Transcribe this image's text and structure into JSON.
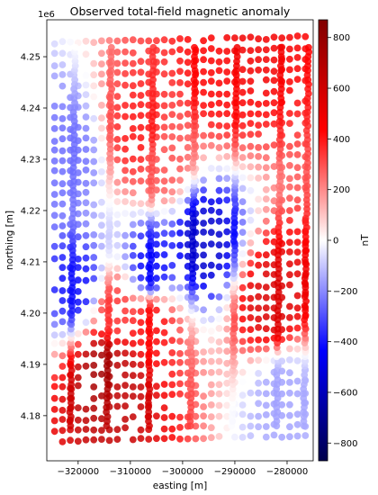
{
  "chart_data": {
    "type": "scatter",
    "title": "Observed total-field magnetic anomaly",
    "xlabel": "easting [m]",
    "ylabel": "northing [m]",
    "y_offset_label": "1e6",
    "xlim": [
      -326000,
      -275000
    ],
    "ylim": [
      4.1712,
      4.2572
    ],
    "x_ticks": [
      -320000,
      -310000,
      -300000,
      -290000,
      -280000
    ],
    "x_tick_labels": [
      "−320000",
      "−310000",
      "−300000",
      "−290000",
      "−280000"
    ],
    "y_ticks": [
      4.18,
      4.19,
      4.2,
      4.21,
      4.22,
      4.23,
      4.24,
      4.25
    ],
    "y_tick_labels": [
      "4.18",
      "4.19",
      "4.20",
      "4.21",
      "4.22",
      "4.23",
      "4.24",
      "4.25"
    ],
    "grid": false,
    "colormap": "seismic",
    "colormap_colors": [
      "#00004c",
      "#0000ff",
      "#ffffff",
      "#ff0000",
      "#800000"
    ],
    "colorbar": {
      "label": "nT",
      "range": [
        -870,
        870
      ],
      "ticks": [
        -800,
        -600,
        -400,
        -200,
        0,
        200,
        400,
        600,
        800
      ],
      "tick_labels": [
        "−800",
        "−600",
        "−400",
        "−200",
        "0",
        "200",
        "400",
        "600",
        "800"
      ]
    },
    "anomaly_samples": [
      {
        "easting": -315000,
        "northing": 4.189,
        "value": 750
      },
      {
        "easting": -312000,
        "northing": 4.187,
        "value": 650
      },
      {
        "easting": -306000,
        "northing": 4.198,
        "value": 430
      },
      {
        "easting": -313000,
        "northing": 4.2,
        "value": 350
      },
      {
        "easting": -283000,
        "northing": 4.202,
        "value": 560
      },
      {
        "easting": -288000,
        "northing": 4.252,
        "value": 480
      },
      {
        "easting": -293000,
        "northing": 4.247,
        "value": 440
      },
      {
        "easting": -308000,
        "northing": 4.235,
        "value": 410
      },
      {
        "easting": -304000,
        "northing": 4.23,
        "value": 300
      },
      {
        "easting": -296000,
        "northing": 4.214,
        "value": -560
      },
      {
        "easting": -320000,
        "northing": 4.205,
        "value": -420
      },
      {
        "easting": -306000,
        "northing": 4.209,
        "value": -440
      },
      {
        "easting": -322000,
        "northing": 4.23,
        "value": -250
      },
      {
        "easting": -281000,
        "northing": 4.184,
        "value": -160
      }
    ]
  }
}
